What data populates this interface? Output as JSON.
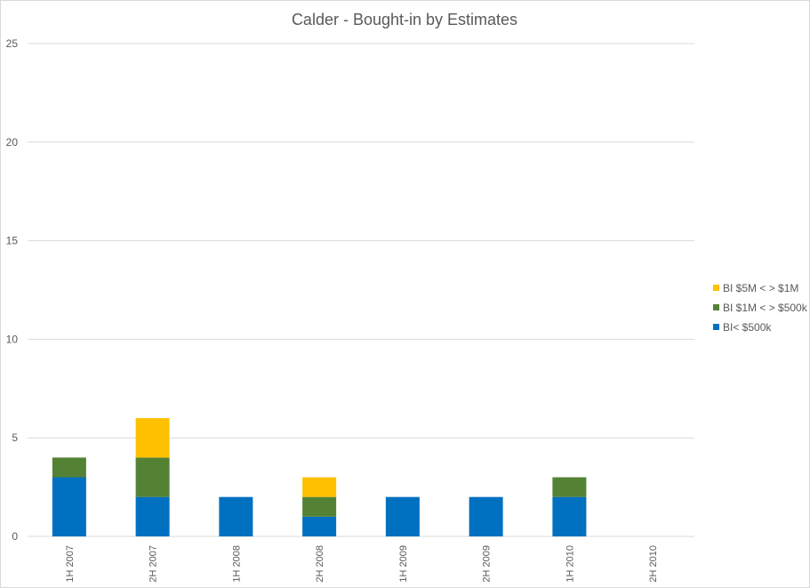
{
  "chart_data": {
    "type": "bar",
    "stacked": true,
    "title": "Calder - Bought-in by Estimates",
    "xlabel": "",
    "ylabel": "",
    "ylim": [
      0,
      25
    ],
    "yticks": [
      0,
      5,
      10,
      15,
      20,
      25
    ],
    "grid": true,
    "legend_position": "right",
    "categories": [
      "1H 2007",
      "2H 2007",
      "1H 2008",
      "2H 2008",
      "1H 2009",
      "2H 2009",
      "1H 2010",
      "2H 2010"
    ],
    "series": [
      {
        "name": "BI< $500k",
        "color": "#0070c0",
        "values": [
          3,
          2,
          2,
          1,
          2,
          2,
          2,
          0
        ]
      },
      {
        "name": "BI $1M < > $500k",
        "color": "#548235",
        "values": [
          1,
          2,
          0,
          1,
          0,
          0,
          1,
          0
        ]
      },
      {
        "name": "BI $5M < > $1M",
        "color": "#ffc000",
        "values": [
          0,
          2,
          0,
          1,
          0,
          0,
          0,
          0
        ]
      }
    ],
    "legend_order": [
      "BI $5M < > $1M",
      "BI $1M < > $500k",
      "BI< $500k"
    ]
  }
}
